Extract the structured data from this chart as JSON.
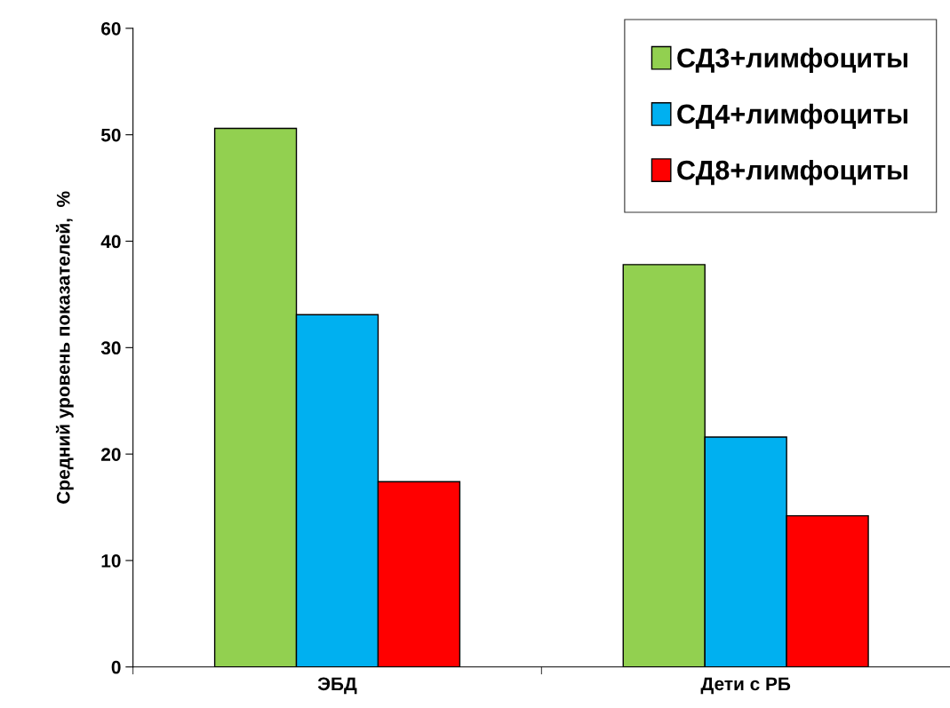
{
  "chart_data": {
    "type": "bar",
    "ylabel": "Средний уровень показателей,  %",
    "categories": [
      "ЭБД",
      "Дети с РБ"
    ],
    "series": [
      {
        "name": "СД3+лимфоциты",
        "color": "#92d050",
        "values": [
          50.6,
          37.8
        ]
      },
      {
        "name": "СД4+лимфоциты",
        "color": "#00b0f0",
        "values": [
          33.1,
          21.6
        ]
      },
      {
        "name": "СД8+лимфоциты",
        "color": "#ff0000",
        "values": [
          17.4,
          14.2
        ]
      }
    ],
    "ylim": [
      0,
      60
    ],
    "yticks": [
      0,
      10,
      20,
      30,
      40,
      50,
      60
    ],
    "grid": false,
    "legend": "top right"
  }
}
